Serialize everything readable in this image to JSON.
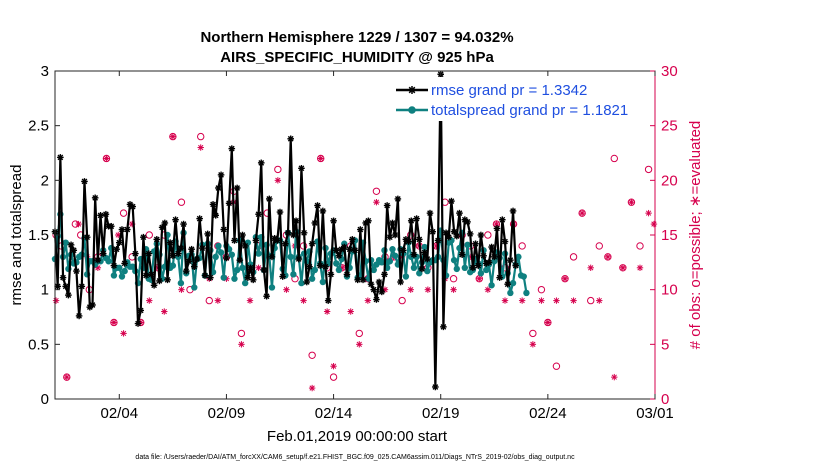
{
  "chart_data": {
    "type": "line",
    "title_line1": "Northern Hemisphere 1229 / 1307 = 94.032%",
    "title_line2": "AIRS_SPECIFIC_HUMIDITY @ 925 hPa",
    "ylabel": "rmse and totalspread",
    "y2label": "# of obs: o=possible; ∗=evaluated",
    "xlabel": "Feb.01,2019 00:00:00 start",
    "footnote": "data file: /Users/raeder/DAI/ATM_forcXX/CAM6_setup/f.e21.FHIST_BGC.f09_025.CAM6assim.011/Diags_NTrS_2019-02/obs_diag_output.nc",
    "xlim": [
      1,
      29
    ],
    "ylim": [
      0,
      3
    ],
    "y2lim": [
      0,
      30
    ],
    "yticks": [
      "0",
      "0.5",
      "1",
      "1.5",
      "2",
      "2.5",
      "3"
    ],
    "y2ticks": [
      "0",
      "5",
      "10",
      "15",
      "20",
      "25",
      "30"
    ],
    "xticks": [
      {
        "pos": 4,
        "label": "02/04"
      },
      {
        "pos": 9,
        "label": "02/09"
      },
      {
        "pos": 14,
        "label": "02/14"
      },
      {
        "pos": 19,
        "label": "02/19"
      },
      {
        "pos": 24,
        "label": "02/24"
      },
      {
        "pos": 29,
        "label": "03/01"
      }
    ],
    "legend": [
      "rmse grand pr = 1.3342",
      "totalspread grand pr = 1.1821"
    ],
    "colors": {
      "rmse": "#000000",
      "spread": "#0f8080",
      "obs": "#d6004d",
      "legend_text": "#1f4fe0"
    },
    "t_start": 1.0,
    "t_step": 0.125,
    "series": [
      {
        "name": "rmse",
        "values": [
          1.53,
          1.03,
          2.21,
          1.11,
          1.03,
          0.95,
          1.41,
          1.36,
          1.17,
          0.76,
          1.03,
          1.99,
          1.48,
          0.84,
          0.86,
          1.84,
          1.27,
          1.68,
          1.33,
          1.69,
          1.58,
          1.58,
          1.22,
          1.37,
          1.43,
          1.55,
          1.24,
          1.55,
          1.78,
          1.76,
          1.33,
          0.69,
          0.81,
          1.48,
          1.13,
          1.33,
          1.14,
          1.04,
          1.46,
          1.08,
          1.57,
          1.61,
          1.09,
          1.43,
          1.31,
          1.64,
          1.33,
          1.38,
          1.6,
          1.17,
          1.26,
          1.37,
          1.21,
          1.28,
          1.65,
          1.38,
          1.13,
          1.51,
          1.11,
          1.78,
          1.68,
          1.93,
          2.05,
          1.55,
          1.29,
          1.79,
          2.29,
          1.45,
          1.93,
          1.27,
          1.5,
          1.4,
          1.11,
          1.2,
          1.09,
          1.45,
          1.69,
          2.16,
          1.18,
          0.94,
          1.83,
          1.3,
          1.47,
          1.45,
          1.71,
          1.12,
          1.42,
          1.52,
          2.38,
          1.5,
          1.63,
          1.28,
          2.11,
          1.52,
          1.07,
          1.21,
          1.42,
          1.61,
          1.77,
          1.22,
          1.72,
          1.21,
          0.9,
          1.14,
          1.63,
          1.36,
          1.31,
          1.37,
          1.39,
          1.14,
          1.37,
          1.46,
          1.36,
          1.09,
          1.55,
          1.09,
          1.61,
          1.63,
          1.05,
          1.0,
          0.91,
          1.07,
          0.98,
          1.14,
          1.77,
          1.48,
          1.61,
          1.5,
          1.83,
          1.07,
          1.36,
          1.46,
          1.44,
          1.63,
          1.32,
          1.65,
          1.46,
          1.19,
          1.34,
          1.28,
          1.7,
          1.53,
          0.11,
          1.45,
          2.97,
          0.66,
          1.52,
          1.48,
          1.81,
          1.53,
          1.49,
          1.7,
          1.32,
          1.64,
          1.62,
          1.51,
          1.2,
          1.42,
          1.22,
          1.5,
          1.31,
          1.24,
          1.25,
          1.39,
          1.3,
          1.56,
          1.11,
          1.64,
          1.44,
          1.05,
          1.27,
          1.72,
          1.22
        ]
      },
      {
        "name": "totalspread",
        "values": [
          1.28,
          1.49,
          1.69,
          1.3,
          1.43,
          1.19,
          1.32,
          1.24,
          1.25,
          1.3,
          1.32,
          1.47,
          1.14,
          1.26,
          1.26,
          1.23,
          1.26,
          1.26,
          1.36,
          1.29,
          1.26,
          1.38,
          1.13,
          1.2,
          1.2,
          1.12,
          1.17,
          1.25,
          1.21,
          1.21,
          1.17,
          1.06,
          1.28,
          1.2,
          1.37,
          1.1,
          1.09,
          1.35,
          1.42,
          1.32,
          1.1,
          1.21,
          1.5,
          1.2,
          1.22,
          1.44,
          1.3,
          1.06,
          1.52,
          1.15,
          1.31,
          1.32,
          1.02,
          1.28,
          1.29,
          1.41,
          1.13,
          1.42,
          1.36,
          1.16,
          1.3,
          1.4,
          1.34,
          1.11,
          1.4,
          1.37,
          1.32,
          1.1,
          1.18,
          1.45,
          1.2,
          1.06,
          1.43,
          1.23,
          1.16,
          1.48,
          1.33,
          1.48,
          1.18,
          1.41,
          1.31,
          1.02,
          1.38,
          1.45,
          1.45,
          1.19,
          1.13,
          1.52,
          1.3,
          1.14,
          1.53,
          1.3,
          1.06,
          1.33,
          1.26,
          1.35,
          1.1,
          1.18,
          1.44,
          1.24,
          1.07,
          1.38,
          1.24,
          1.33,
          1.36,
          1.24,
          1.18,
          1.28,
          1.42,
          1.12,
          1.2,
          1.35,
          1.45,
          1.11,
          1.13,
          1.43,
          1.26,
          1.1,
          1.27,
          1.18,
          1.23,
          1.27,
          1.25,
          1.36,
          1.2,
          1.26,
          1.37,
          1.31,
          1.23,
          1.37,
          1.33,
          1.12,
          1.43,
          1.3,
          1.2,
          1.3,
          1.15,
          1.25,
          1.39,
          1.17,
          1.25,
          1.27,
          1.27,
          1.3,
          1.54,
          1.27,
          1.13,
          1.43,
          1.45,
          1.27,
          1.19,
          1.38,
          1.52,
          1.2,
          1.41,
          1.16,
          1.18,
          1.28,
          1.24,
          1.15,
          1.36,
          1.18,
          1.23,
          1.04,
          1.26,
          1.34,
          1.29,
          1.12,
          1.33,
          1.15,
          0.97,
          1.06,
          1.23,
          1.3,
          1.13,
          1.12,
          0.97
        ]
      }
    ],
    "obs_possible": [
      {
        "x": 1.05,
        "y": 15
      },
      {
        "x": 1.3,
        "y": 14
      },
      {
        "x": 1.55,
        "y": 2
      },
      {
        "x": 1.95,
        "y": 16
      },
      {
        "x": 2.2,
        "y": 15
      },
      {
        "x": 2.6,
        "y": 10
      },
      {
        "x": 3.0,
        "y": 13
      },
      {
        "x": 3.4,
        "y": 22
      },
      {
        "x": 3.75,
        "y": 7
      },
      {
        "x": 4.2,
        "y": 17
      },
      {
        "x": 4.6,
        "y": 13
      },
      {
        "x": 5.0,
        "y": 7
      },
      {
        "x": 5.4,
        "y": 15
      },
      {
        "x": 5.8,
        "y": 12
      },
      {
        "x": 6.1,
        "y": 15
      },
      {
        "x": 6.5,
        "y": 24
      },
      {
        "x": 6.9,
        "y": 18
      },
      {
        "x": 7.3,
        "y": 10
      },
      {
        "x": 7.8,
        "y": 24
      },
      {
        "x": 8.2,
        "y": 9
      },
      {
        "x": 8.6,
        "y": 14
      },
      {
        "x": 9.0,
        "y": 13
      },
      {
        "x": 9.35,
        "y": 19
      },
      {
        "x": 9.7,
        "y": 6
      },
      {
        "x": 10.1,
        "y": 12
      },
      {
        "x": 10.5,
        "y": 14
      },
      {
        "x": 10.9,
        "y": 17
      },
      {
        "x": 11.4,
        "y": 21
      },
      {
        "x": 11.8,
        "y": 15
      },
      {
        "x": 12.2,
        "y": 11
      },
      {
        "x": 12.6,
        "y": 14
      },
      {
        "x": 13.0,
        "y": 4
      },
      {
        "x": 13.4,
        "y": 22
      },
      {
        "x": 13.7,
        "y": 12
      },
      {
        "x": 14.0,
        "y": 2
      },
      {
        "x": 14.4,
        "y": 12
      },
      {
        "x": 14.8,
        "y": 14
      },
      {
        "x": 15.2,
        "y": 6
      },
      {
        "x": 15.6,
        "y": 11
      },
      {
        "x": 16.0,
        "y": 19
      },
      {
        "x": 16.4,
        "y": 13
      },
      {
        "x": 16.8,
        "y": 13
      },
      {
        "x": 17.2,
        "y": 9
      },
      {
        "x": 17.6,
        "y": 15
      },
      {
        "x": 18.0,
        "y": 14
      },
      {
        "x": 18.4,
        "y": 12
      },
      {
        "x": 18.8,
        "y": 14
      },
      {
        "x": 19.2,
        "y": 18
      },
      {
        "x": 19.6,
        "y": 11
      },
      {
        "x": 20.0,
        "y": 15
      },
      {
        "x": 20.4,
        "y": 14
      },
      {
        "x": 20.8,
        "y": 11
      },
      {
        "x": 21.2,
        "y": 15
      },
      {
        "x": 21.6,
        "y": 16
      },
      {
        "x": 22.0,
        "y": 12
      },
      {
        "x": 22.4,
        "y": 16
      },
      {
        "x": 22.8,
        "y": 14
      },
      {
        "x": 23.3,
        "y": 6
      },
      {
        "x": 23.7,
        "y": 10
      },
      {
        "x": 24.0,
        "y": 7
      },
      {
        "x": 24.4,
        "y": 3
      },
      {
        "x": 24.8,
        "y": 11
      },
      {
        "x": 25.2,
        "y": 13
      },
      {
        "x": 25.6,
        "y": 17
      },
      {
        "x": 26.0,
        "y": 9
      },
      {
        "x": 26.4,
        "y": 14
      },
      {
        "x": 26.8,
        "y": 13
      },
      {
        "x": 27.1,
        "y": 22
      },
      {
        "x": 27.5,
        "y": 12
      },
      {
        "x": 27.9,
        "y": 18
      },
      {
        "x": 28.3,
        "y": 14
      },
      {
        "x": 28.7,
        "y": 21
      }
    ],
    "obs_evaluated": [
      {
        "x": 1.05,
        "y": 9
      },
      {
        "x": 1.55,
        "y": 2
      },
      {
        "x": 2.1,
        "y": 16
      },
      {
        "x": 2.5,
        "y": 13
      },
      {
        "x": 3.0,
        "y": 12
      },
      {
        "x": 3.4,
        "y": 22
      },
      {
        "x": 3.75,
        "y": 7
      },
      {
        "x": 3.95,
        "y": 15
      },
      {
        "x": 4.2,
        "y": 6
      },
      {
        "x": 4.6,
        "y": 16
      },
      {
        "x": 5.0,
        "y": 7
      },
      {
        "x": 5.4,
        "y": 9
      },
      {
        "x": 5.8,
        "y": 12
      },
      {
        "x": 6.1,
        "y": 8
      },
      {
        "x": 6.5,
        "y": 24
      },
      {
        "x": 6.9,
        "y": 10
      },
      {
        "x": 7.3,
        "y": 13
      },
      {
        "x": 7.8,
        "y": 23
      },
      {
        "x": 8.2,
        "y": 11
      },
      {
        "x": 8.6,
        "y": 9
      },
      {
        "x": 9.0,
        "y": 11
      },
      {
        "x": 9.35,
        "y": 18
      },
      {
        "x": 9.7,
        "y": 5
      },
      {
        "x": 10.1,
        "y": 9
      },
      {
        "x": 10.5,
        "y": 12
      },
      {
        "x": 10.9,
        "y": 13
      },
      {
        "x": 11.4,
        "y": 20
      },
      {
        "x": 11.8,
        "y": 10
      },
      {
        "x": 12.2,
        "y": 14
      },
      {
        "x": 12.6,
        "y": 9
      },
      {
        "x": 13.0,
        "y": 1
      },
      {
        "x": 13.4,
        "y": 22
      },
      {
        "x": 13.7,
        "y": 8
      },
      {
        "x": 14.0,
        "y": 3
      },
      {
        "x": 14.4,
        "y": 12
      },
      {
        "x": 14.8,
        "y": 8
      },
      {
        "x": 15.2,
        "y": 5
      },
      {
        "x": 15.6,
        "y": 9
      },
      {
        "x": 16.0,
        "y": 18
      },
      {
        "x": 16.4,
        "y": 10
      },
      {
        "x": 16.8,
        "y": 13
      },
      {
        "x": 17.2,
        "y": 13
      },
      {
        "x": 17.6,
        "y": 10
      },
      {
        "x": 18.0,
        "y": 14
      },
      {
        "x": 18.4,
        "y": 10
      },
      {
        "x": 18.8,
        "y": 14
      },
      {
        "x": 19.2,
        "y": 11
      },
      {
        "x": 19.6,
        "y": 10
      },
      {
        "x": 20.0,
        "y": 14
      },
      {
        "x": 20.4,
        "y": 13
      },
      {
        "x": 20.8,
        "y": 11
      },
      {
        "x": 21.2,
        "y": 10
      },
      {
        "x": 21.6,
        "y": 16
      },
      {
        "x": 22.0,
        "y": 9
      },
      {
        "x": 22.4,
        "y": 16
      },
      {
        "x": 22.8,
        "y": 9
      },
      {
        "x": 23.3,
        "y": 5
      },
      {
        "x": 23.7,
        "y": 9
      },
      {
        "x": 24.0,
        "y": 7
      },
      {
        "x": 24.4,
        "y": 9
      },
      {
        "x": 24.8,
        "y": 11
      },
      {
        "x": 25.2,
        "y": 9
      },
      {
        "x": 25.6,
        "y": 17
      },
      {
        "x": 26.0,
        "y": 12
      },
      {
        "x": 26.4,
        "y": 9
      },
      {
        "x": 26.8,
        "y": 13
      },
      {
        "x": 27.1,
        "y": 2
      },
      {
        "x": 27.5,
        "y": 12
      },
      {
        "x": 27.9,
        "y": 18
      },
      {
        "x": 28.3,
        "y": 12
      },
      {
        "x": 28.7,
        "y": 17
      },
      {
        "x": 28.95,
        "y": 16
      }
    ]
  }
}
